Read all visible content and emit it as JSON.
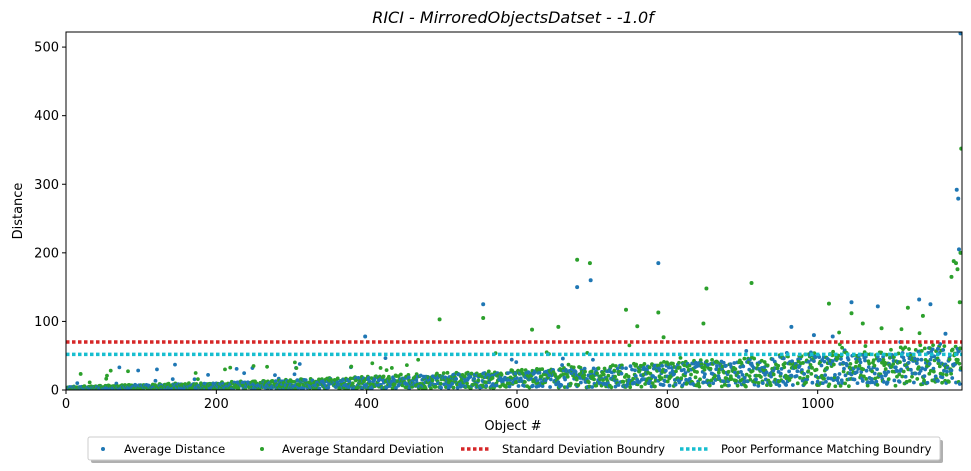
{
  "chart_data": {
    "type": "scatter",
    "title": "RICI - MirroredObjectsDatset - -1.0f",
    "xlabel": "Object #",
    "ylabel": "Distance",
    "xlim": [
      0,
      1192
    ],
    "ylim": [
      0,
      522
    ],
    "xticks": [
      0,
      200,
      400,
      600,
      800,
      1000
    ],
    "yticks": [
      0,
      100,
      200,
      300,
      400,
      500
    ],
    "grid": false,
    "legend_position": "bottom-center",
    "colors": {
      "average_distance": "#1f77b4",
      "average_std": "#2ca02c",
      "std_boundary": "#d62728",
      "poor_boundary": "#17becf"
    },
    "legend": [
      "Average Distance",
      "Average Standard Deviation",
      "Standard Deviation Boundry",
      "Poor Performance Matching Boundry"
    ],
    "series": [
      {
        "name": "Average Distance",
        "style": "points",
        "color": "#1f77b4",
        "points": [
          [
            555,
            125
          ],
          [
            680,
            150
          ],
          [
            698,
            160
          ],
          [
            788,
            185
          ],
          [
            1045,
            128
          ],
          [
            1080,
            122
          ],
          [
            1135,
            132
          ],
          [
            1150,
            125
          ],
          [
            1185,
            292
          ],
          [
            1187,
            279
          ],
          [
            1188,
            205
          ],
          [
            1190,
            520
          ],
          [
            398,
            78
          ],
          [
            965,
            92
          ],
          [
            995,
            80
          ],
          [
            1020,
            78
          ],
          [
            1110,
            70
          ],
          [
            1160,
            60
          ],
          [
            1170,
            82
          ]
        ]
      },
      {
        "name": "Average Standard Deviation",
        "style": "points",
        "color": "#2ca02c",
        "points": [
          [
            497,
            103
          ],
          [
            555,
            105
          ],
          [
            620,
            88
          ],
          [
            655,
            92
          ],
          [
            680,
            190
          ],
          [
            697,
            185
          ],
          [
            745,
            117
          ],
          [
            760,
            93
          ],
          [
            788,
            113
          ],
          [
            795,
            77
          ],
          [
            852,
            148
          ],
          [
            912,
            156
          ],
          [
            848,
            97
          ],
          [
            1015,
            126
          ],
          [
            1045,
            112
          ],
          [
            1060,
            97
          ],
          [
            1085,
            90
          ],
          [
            1120,
            120
          ],
          [
            1140,
            108
          ],
          [
            1178,
            165
          ],
          [
            1181,
            188
          ],
          [
            1184,
            185
          ],
          [
            1186,
            176
          ],
          [
            1189,
            128
          ],
          [
            1191,
            352
          ],
          [
            1190,
            200
          ]
        ]
      },
      {
        "name": "Standard Deviation Boundry",
        "style": "hline",
        "color": "#d62728",
        "y": 70
      },
      {
        "name": "Poor Performance Matching Boundry",
        "style": "hline",
        "color": "#17becf",
        "y": 52
      }
    ]
  }
}
